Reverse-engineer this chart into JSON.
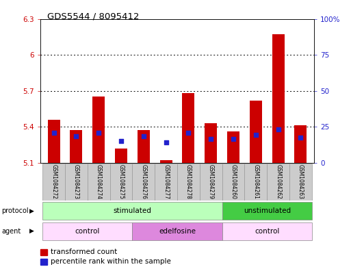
{
  "title": "GDS5544 / 8095412",
  "samples": [
    "GSM1084272",
    "GSM1084273",
    "GSM1084274",
    "GSM1084275",
    "GSM1084276",
    "GSM1084277",
    "GSM1084278",
    "GSM1084279",
    "GSM1084260",
    "GSM1084261",
    "GSM1084262",
    "GSM1084263"
  ],
  "bar_values": [
    5.46,
    5.37,
    5.65,
    5.22,
    5.37,
    5.12,
    5.68,
    5.43,
    5.36,
    5.62,
    6.17,
    5.41
  ],
  "bar_base": 5.1,
  "blue_values": [
    5.35,
    5.32,
    5.35,
    5.28,
    5.32,
    5.27,
    5.35,
    5.3,
    5.3,
    5.33,
    5.38,
    5.31
  ],
  "ylim": [
    5.1,
    6.3
  ],
  "yticks_left": [
    5.1,
    5.4,
    5.7,
    6.0,
    6.3
  ],
  "ytick_labels_left": [
    "5.1",
    "5.4",
    "5.7",
    "6",
    "6.3"
  ],
  "yticks_right": [
    5.1,
    5.4,
    5.7,
    6.0,
    6.3
  ],
  "ytick_labels_right": [
    "0",
    "25",
    "50",
    "75",
    "100%"
  ],
  "grid_values": [
    5.4,
    5.7,
    6.0
  ],
  "bar_color": "#cc0000",
  "blue_color": "#2222cc",
  "protocol_groups": [
    {
      "label": "stimulated",
      "start": 0,
      "end": 7,
      "color": "#bbffbb"
    },
    {
      "label": "unstimulated",
      "start": 8,
      "end": 11,
      "color": "#44cc44"
    }
  ],
  "agent_groups": [
    {
      "label": "control",
      "start": 0,
      "end": 3,
      "color": "#ffddff"
    },
    {
      "label": "edelfosine",
      "start": 4,
      "end": 7,
      "color": "#dd88dd"
    },
    {
      "label": "control",
      "start": 8,
      "end": 11,
      "color": "#ffddff"
    }
  ],
  "legend_red_label": "transformed count",
  "legend_blue_label": "percentile rank within the sample",
  "tick_color_left": "#cc0000",
  "tick_color_right": "#2222cc",
  "bg_color": "#ffffff",
  "bar_width": 0.55,
  "sample_box_color": "#cccccc",
  "sample_box_edge": "#999999"
}
